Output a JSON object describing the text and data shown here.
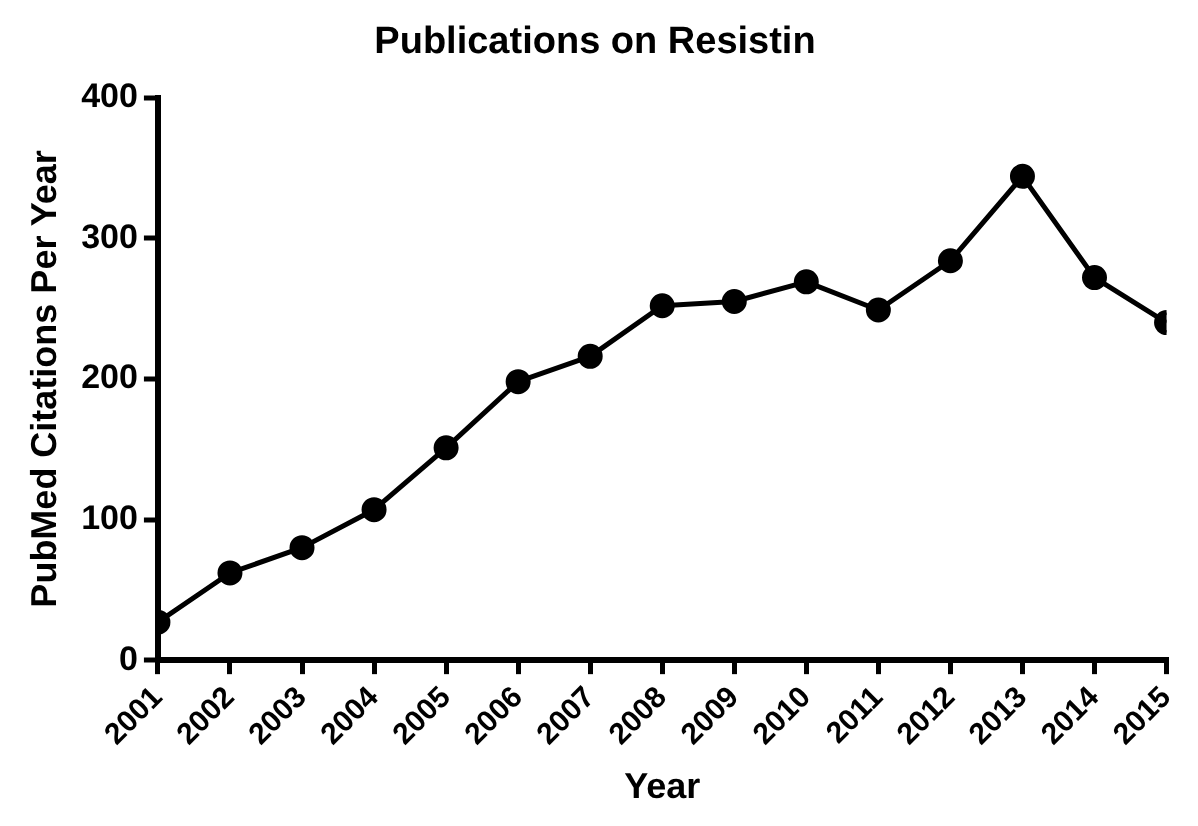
{
  "chart_data": {
    "type": "line",
    "title": "Publications on Resistin",
    "xlabel": "Year",
    "ylabel": "PubMed Citations Per Year",
    "x": [
      2001,
      2002,
      2003,
      2004,
      2005,
      2006,
      2007,
      2008,
      2009,
      2010,
      2011,
      2012,
      2013,
      2014,
      2015
    ],
    "series": [
      {
        "color": "#000000",
        "values": [
          27,
          62,
          80,
          107,
          151,
          198,
          216,
          252,
          255,
          269,
          249,
          284,
          344,
          272,
          240
        ]
      }
    ],
    "xlim": [
      2001,
      2015
    ],
    "xticks": [
      2001,
      2002,
      2003,
      2004,
      2005,
      2006,
      2007,
      2008,
      2009,
      2010,
      2011,
      2012,
      2013,
      2014,
      2015
    ],
    "ylim": [
      0,
      400
    ],
    "yticks": [
      0,
      100,
      200,
      300,
      400
    ],
    "grid": false,
    "legend": false,
    "marker": "circle",
    "line_style": "solid"
  }
}
